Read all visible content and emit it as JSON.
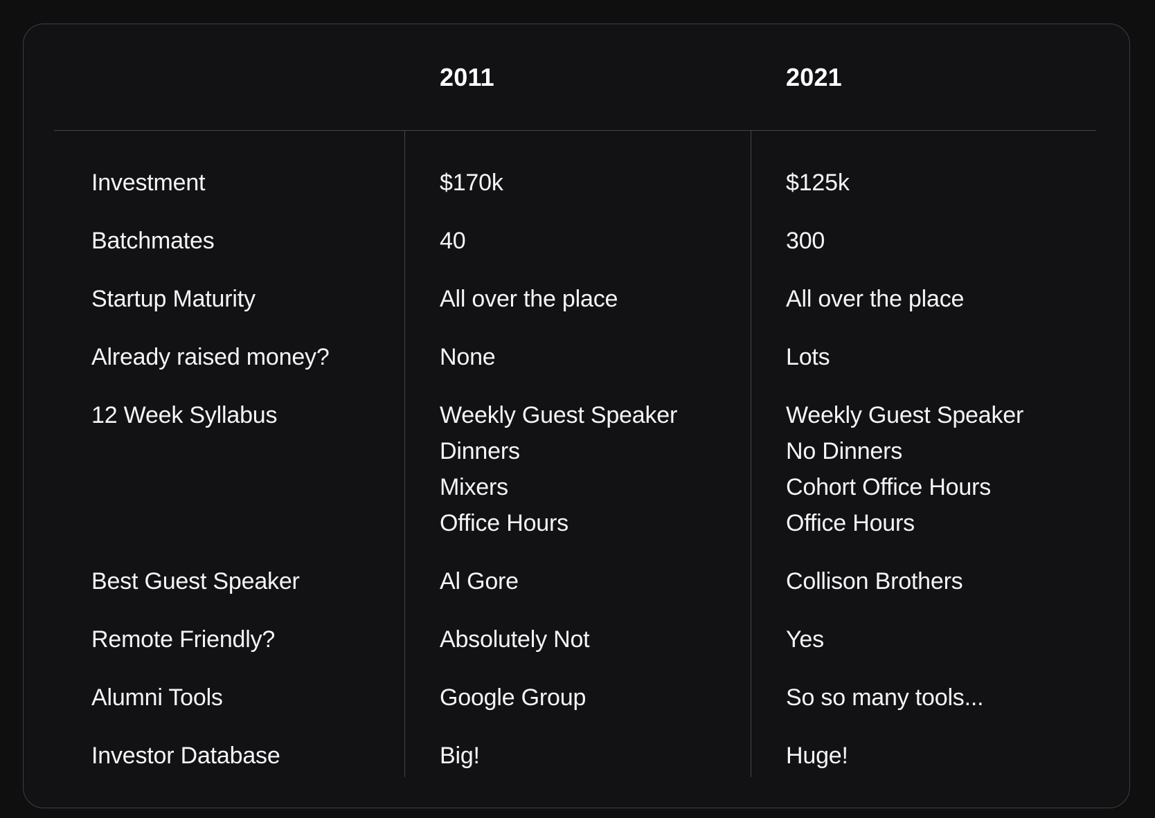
{
  "chart_data": {
    "type": "table",
    "title": "",
    "columns": [
      "",
      "2011",
      "2021"
    ],
    "rows": [
      {
        "label": "Investment",
        "v2011": [
          "$170k"
        ],
        "v2021": [
          "$125k"
        ]
      },
      {
        "label": "Batchmates",
        "v2011": [
          "40"
        ],
        "v2021": [
          "300"
        ]
      },
      {
        "label": "Startup Maturity",
        "v2011": [
          "All over the place"
        ],
        "v2021": [
          "All over the place"
        ]
      },
      {
        "label": "Already raised money?",
        "v2011": [
          "None"
        ],
        "v2021": [
          "Lots"
        ]
      },
      {
        "label": "12 Week Syllabus",
        "v2011": [
          "Weekly Guest Speaker",
          "Dinners",
          "Mixers",
          "Office Hours"
        ],
        "v2021": [
          "Weekly Guest Speaker",
          "No Dinners",
          "Cohort Office Hours",
          "Office Hours"
        ]
      },
      {
        "label": "Best Guest Speaker",
        "v2011": [
          "Al Gore"
        ],
        "v2021": [
          "Collison Brothers"
        ]
      },
      {
        "label": "Remote Friendly?",
        "v2011": [
          "Absolutely Not"
        ],
        "v2021": [
          "Yes"
        ]
      },
      {
        "label": "Alumni Tools",
        "v2011": [
          "Google Group"
        ],
        "v2021": [
          "So so many tools..."
        ]
      },
      {
        "label": "Investor Database",
        "v2011": [
          "Big!"
        ],
        "v2021": [
          "Huge!"
        ]
      }
    ]
  },
  "table": {
    "col_headers": [
      "2011",
      "2021"
    ]
  },
  "colors": {
    "page_background": "#0f0f10",
    "card_background": "#121214",
    "border": "#3e3e42",
    "divider": "#45454a",
    "text": "#f5f5f6",
    "header_text": "#ffffff"
  }
}
